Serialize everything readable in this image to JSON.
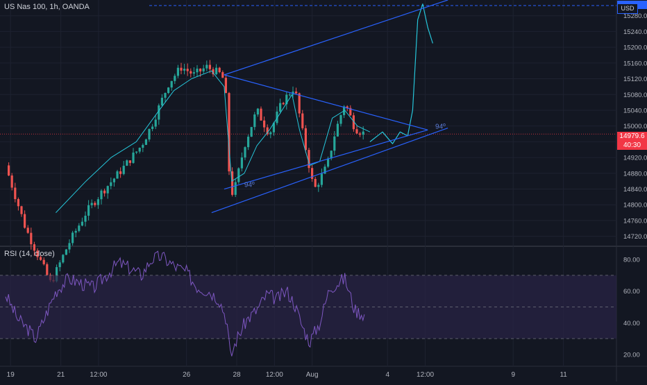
{
  "header": {
    "symbol_title": "US Nas 100, 1h, OANDA",
    "currency": "USD"
  },
  "last_price": {
    "value": "14979.6",
    "countdown": "40:30"
  },
  "rsi_panel": {
    "title": "RSI (14, close)"
  },
  "colors": {
    "background": "#131722",
    "bull": "#26a69a",
    "bear": "#ef5350",
    "trendline": "#2962ff",
    "ma": "#26c6da",
    "rsi": "#7e57c2",
    "rsi_band": "#2a2346",
    "last_price": "#f23645"
  },
  "chart_data": [
    {
      "type": "candlestick",
      "title": "US Nas 100, 1h, OANDA",
      "y_ticks": [
        14720,
        14760,
        14800,
        14840,
        14880,
        14920,
        14960,
        15000,
        15040,
        15080,
        15120,
        15160,
        15200,
        15240,
        15280
      ],
      "ylim": [
        14700,
        15320
      ],
      "x_ticks": [
        "19",
        "21",
        "12:00",
        "26",
        "28",
        "12:00",
        "Aug",
        "4",
        "12:00",
        "9",
        "11"
      ],
      "x_tick_days": [
        19,
        21,
        22.5,
        26,
        28,
        29.5,
        31,
        34,
        35.5,
        39,
        41
      ],
      "last_price": 14979.6,
      "candle_path_days": [
        18.8,
        19.6,
        20.6,
        21.3,
        22,
        22.6,
        23.3,
        24.2,
        24.6,
        25.3,
        25.8,
        26.3,
        26.8,
        27.4,
        27.55,
        27.7,
        27.85,
        28.3,
        28.8,
        29.3,
        29.8,
        30.3,
        30.6,
        31.0,
        31.1,
        31.6,
        31.9,
        32.3,
        32.7,
        33.1
      ],
      "candle_path_values": [
        14900,
        14740,
        14600,
        14700,
        14780,
        14830,
        14880,
        14950,
        15000,
        15110,
        15150,
        15130,
        15150,
        15130,
        15100,
        14880,
        14820,
        14950,
        15040,
        14980,
        15060,
        15100,
        14990,
        14860,
        14840,
        14900,
        14980,
        15060,
        14995,
        14979.6
      ],
      "ma_days": [
        20.8,
        22,
        23,
        24,
        24.8,
        25.5,
        26.2,
        27,
        27.5,
        27.8,
        28.3,
        28.8,
        29.3,
        29.8,
        30.2,
        30.5,
        30.9,
        31.3,
        31.8,
        32.3,
        32.8,
        33.3
      ],
      "ma_values": [
        14780,
        14860,
        14920,
        14960,
        15030,
        15090,
        15120,
        15140,
        15100,
        14860,
        14880,
        14950,
        14990,
        15040,
        15080,
        14990,
        14900,
        14910,
        15020,
        15040,
        15000,
        14985
      ],
      "projection_days": [
        33.3,
        33.8,
        34.2,
        34.5,
        34.8,
        35.0,
        35.2,
        35.4,
        35.6,
        35.8
      ],
      "projection_values": [
        14960,
        14985,
        14955,
        14985,
        14975,
        15040,
        15270,
        15310,
        15250,
        15210
      ],
      "channel_upper": {
        "x": [
          27.5,
          36.4
        ],
        "y": [
          15130,
          15320
        ]
      },
      "channel_lower": {
        "x": [
          27,
          36.4
        ],
        "y": [
          14780,
          14995
        ]
      },
      "triangle_upper": {
        "x": [
          27.5,
          35.6
        ],
        "y": [
          15130,
          14990
        ]
      },
      "triangle_lower": {
        "x": [
          27.5,
          35.6
        ],
        "y": [
          14840,
          14990
        ]
      },
      "annotations": [
        {
          "text": "94º",
          "x": 28.3,
          "y": 14845
        },
        {
          "text": "94º",
          "x": 35.9,
          "y": 14993
        }
      ]
    },
    {
      "type": "line",
      "title": "RSI (14, close)",
      "y_ticks": [
        20,
        40,
        60,
        80
      ],
      "ylim": [
        13,
        87
      ],
      "bands": [
        30,
        50,
        70
      ],
      "rsi_path_days": [
        18.8,
        19.3,
        19.7,
        20.0,
        20.4,
        20.8,
        21.3,
        21.8,
        22.3,
        22.8,
        23.3,
        23.8,
        24.2,
        24.6,
        25.0,
        25.5,
        26.0,
        26.4,
        26.9,
        27.3,
        27.6,
        27.75,
        28.0,
        28.4,
        28.8,
        29.2,
        29.6,
        30.0,
        30.3,
        30.6,
        30.9,
        31.3,
        31.7,
        32.0,
        32.3,
        32.7,
        33.1
      ],
      "rsi_path_values": [
        58,
        42,
        36,
        30,
        45,
        60,
        68,
        65,
        62,
        70,
        78,
        74,
        70,
        80,
        82,
        76,
        72,
        63,
        60,
        55,
        42,
        18,
        30,
        42,
        48,
        58,
        55,
        60,
        52,
        38,
        28,
        40,
        62,
        65,
        68,
        48,
        45
      ]
    }
  ]
}
